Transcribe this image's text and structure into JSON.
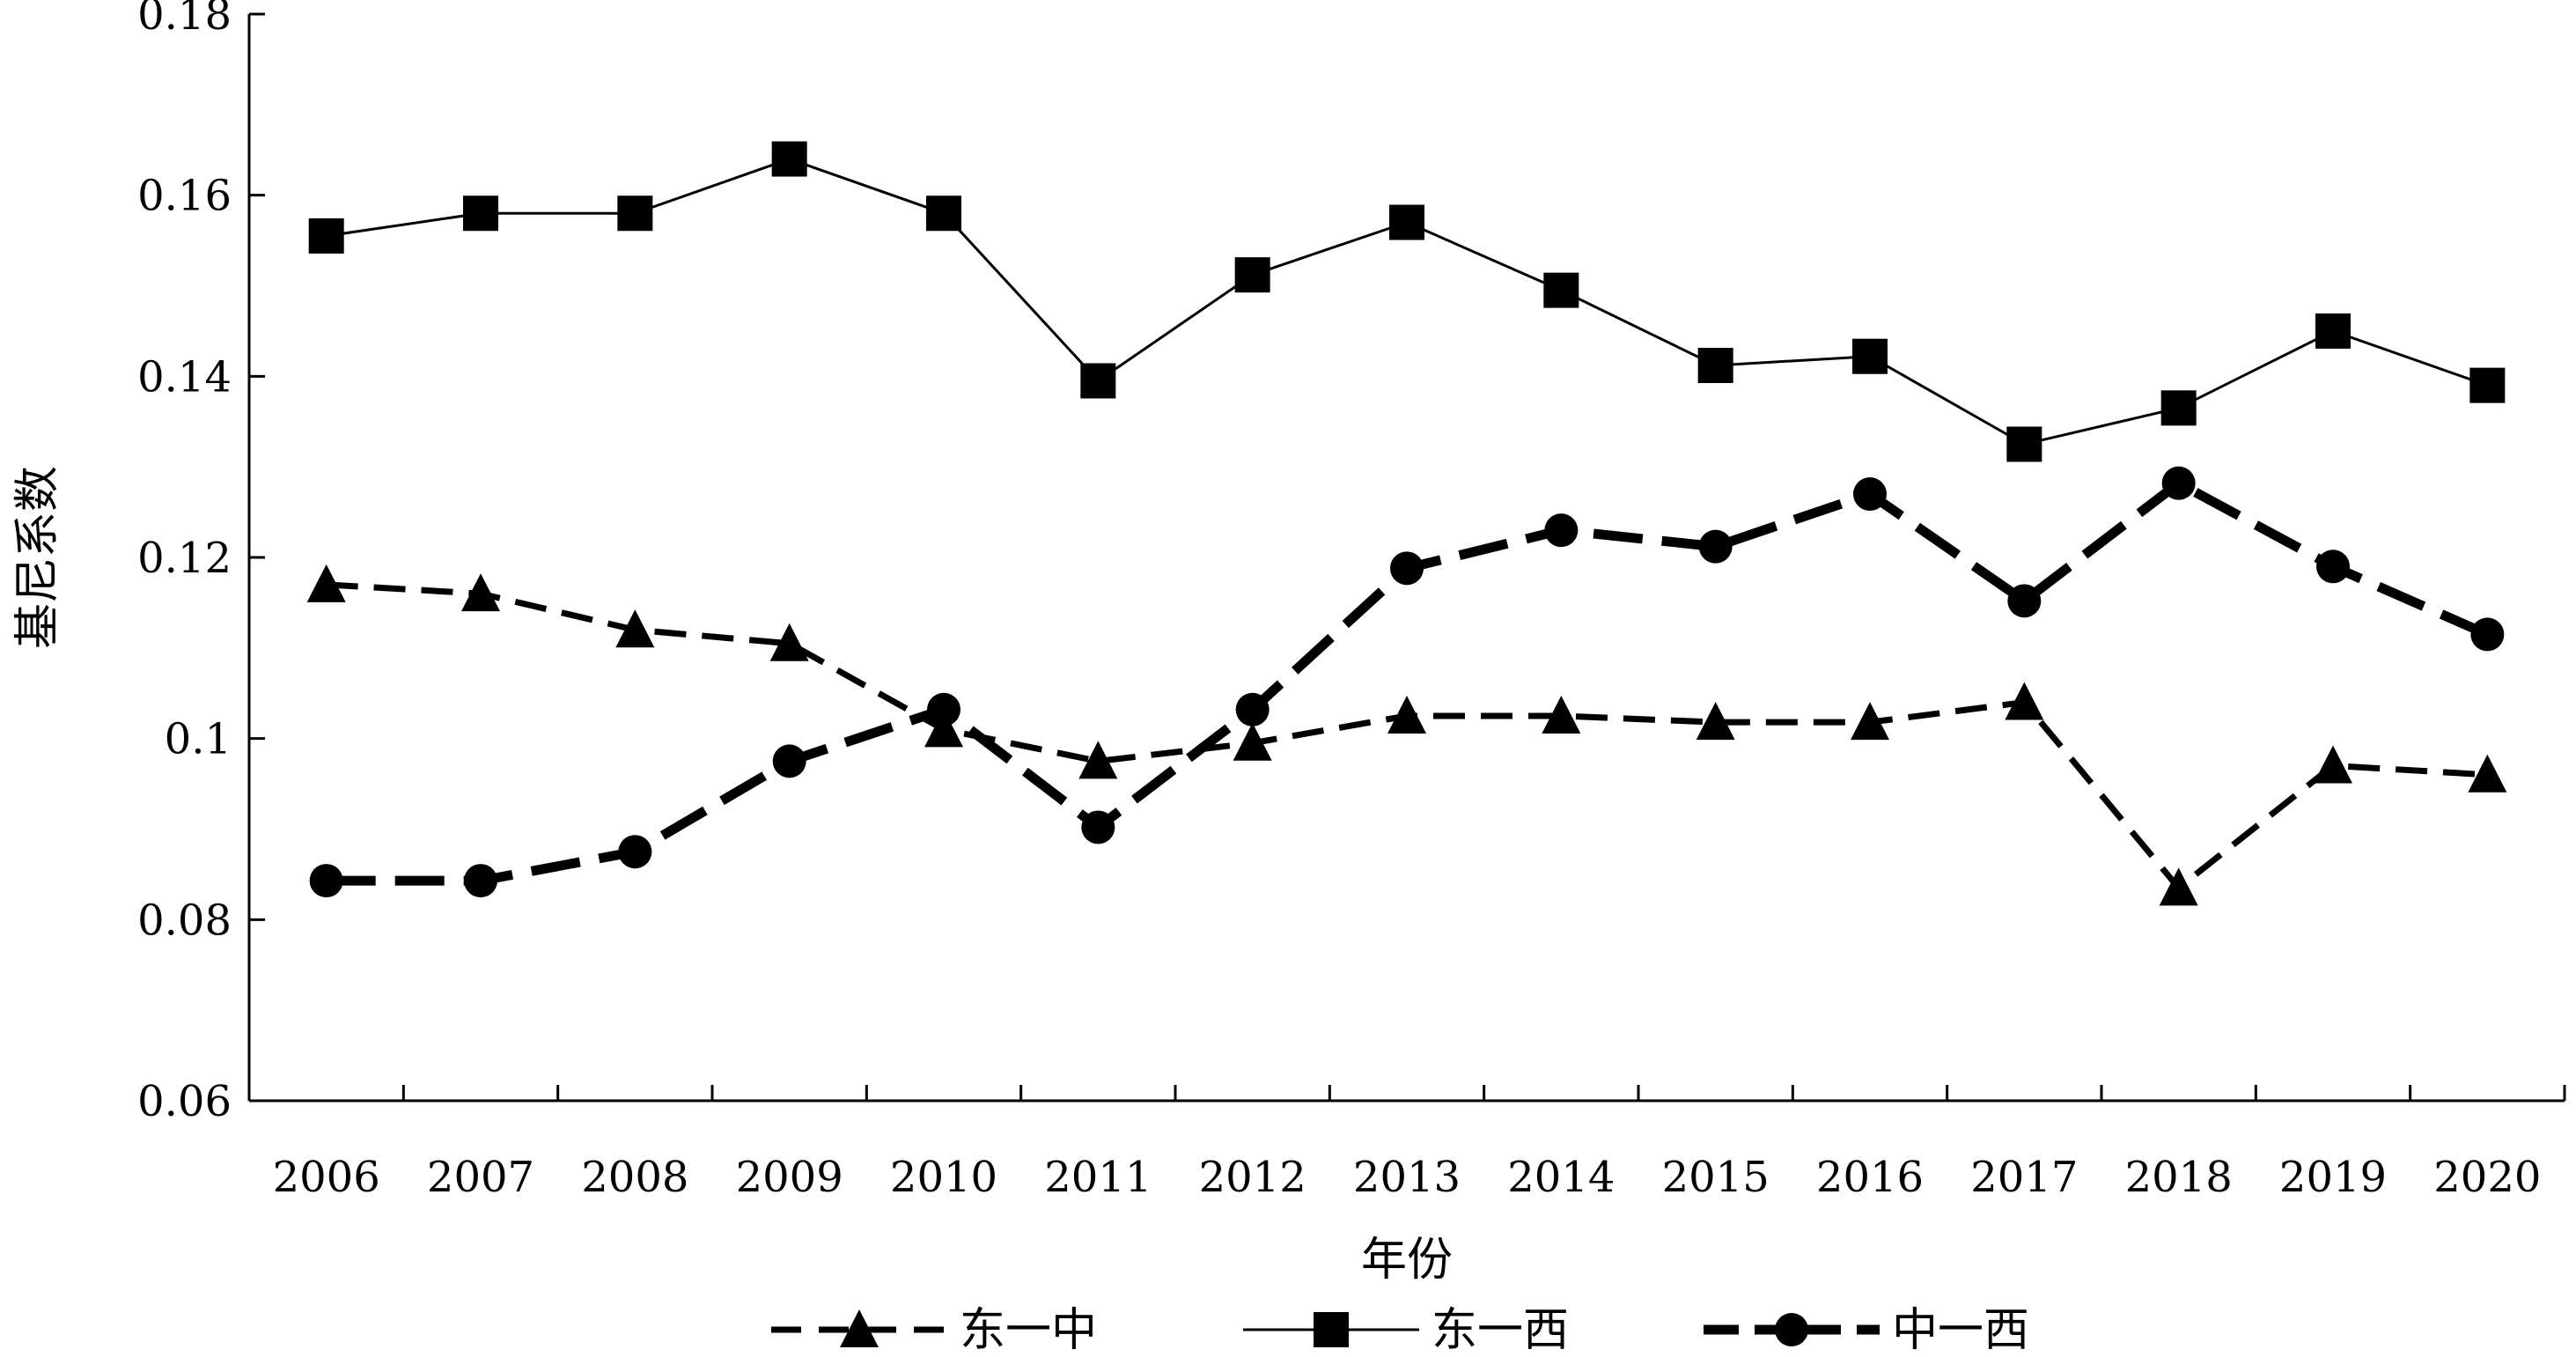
{
  "chart_data": {
    "type": "line",
    "title": "",
    "xlabel": "年份",
    "ylabel": "基尼系数",
    "categories": [
      "2006",
      "2007",
      "2008",
      "2009",
      "2010",
      "2011",
      "2012",
      "2013",
      "2014",
      "2015",
      "2016",
      "2017",
      "2018",
      "2019",
      "2020"
    ],
    "ylim": [
      0.06,
      0.18
    ],
    "yticks": [
      0.06,
      0.08,
      0.1,
      0.12,
      0.14,
      0.16,
      0.18
    ],
    "ytick_labels": [
      "0.06",
      "0.08",
      "0.1",
      "0.12",
      "0.14",
      "0.16",
      "0.18"
    ],
    "grid": false,
    "legend_position": "bottom",
    "series": [
      {
        "name": "东一中",
        "line_style": "dashed",
        "marker": "triangle",
        "values": [
          0.117,
          0.116,
          0.112,
          0.1105,
          0.101,
          0.0975,
          0.0995,
          0.1025,
          0.1025,
          0.1018,
          0.1018,
          0.104,
          0.0835,
          0.097,
          0.096
        ]
      },
      {
        "name": "东一西",
        "line_style": "solid",
        "marker": "square",
        "values": [
          0.1555,
          0.158,
          0.158,
          0.164,
          0.158,
          0.1395,
          0.1512,
          0.157,
          0.1495,
          0.1412,
          0.1422,
          0.1325,
          0.1365,
          0.145,
          0.139
        ]
      },
      {
        "name": "中一西",
        "line_style": "thick-dashed",
        "marker": "circle",
        "values": [
          0.0843,
          0.0843,
          0.0875,
          0.0975,
          0.1032,
          0.0902,
          0.1032,
          0.1188,
          0.123,
          0.1212,
          0.127,
          0.1152,
          0.1282,
          0.119,
          0.1115
        ]
      }
    ],
    "colors": {
      "line": "#000000",
      "background": "#ffffff"
    }
  }
}
